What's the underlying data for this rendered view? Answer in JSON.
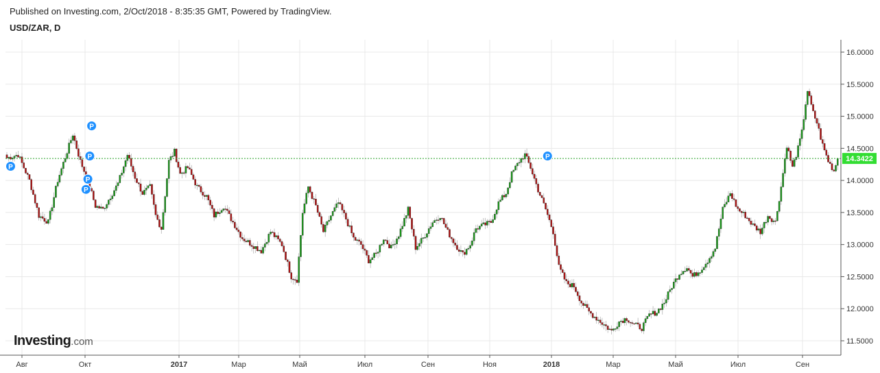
{
  "header": {
    "published": "Published on Investing.com, 2/Oct/2018 - 8:35:35 GMT, Powered by TradingView.",
    "symbol": "USD/ZAR, D"
  },
  "logo": {
    "main": "Investing",
    "suffix": ".com"
  },
  "colors": {
    "up": "#1a9b1a",
    "down": "#b31212",
    "price_label": "#33dd33",
    "marker": "#1e90ff",
    "grid": "#e8e8e8"
  },
  "chart_data": {
    "type": "candlestick",
    "title": "USD/ZAR, D",
    "ylim": [
      11.4,
      16.15
    ],
    "y_ticks": [
      "16.0000",
      "15.5000",
      "15.0000",
      "14.5000",
      "14.0000",
      "13.5000",
      "13.0000",
      "12.5000",
      "12.0000",
      "11.5000"
    ],
    "y_tick_values": [
      16.0,
      15.5,
      15.0,
      14.5,
      14.0,
      13.5,
      13.0,
      12.5,
      12.0,
      11.5
    ],
    "x_ticks": [
      "Авг",
      "Окт",
      "2017",
      "Мар",
      "Май",
      "Июл",
      "Сен",
      "Ноя",
      "2018",
      "Мар",
      "Май",
      "Июл",
      "Сен"
    ],
    "x_tick_bold": [
      false,
      false,
      true,
      false,
      false,
      false,
      false,
      false,
      true,
      false,
      false,
      false,
      false
    ],
    "last_price": 14.3422,
    "last_price_label": "14.3422",
    "marker_label": "P",
    "markers": [
      [
        2,
        14.22
      ],
      [
        45,
        14.85
      ],
      [
        44,
        14.38
      ],
      [
        43,
        14.02
      ],
      [
        42,
        13.86
      ],
      [
        287,
        14.38
      ]
    ],
    "path": [
      [
        0,
        14.35
      ],
      [
        6,
        14.4
      ],
      [
        12,
        14.0
      ],
      [
        17,
        13.45
      ],
      [
        22,
        13.35
      ],
      [
        27,
        14.0
      ],
      [
        32,
        14.45
      ],
      [
        35,
        14.72
      ],
      [
        39,
        14.3
      ],
      [
        43,
        14.0
      ],
      [
        47,
        13.6
      ],
      [
        51,
        13.55
      ],
      [
        55,
        13.75
      ],
      [
        59,
        13.95
      ],
      [
        64,
        14.4
      ],
      [
        68,
        14.05
      ],
      [
        72,
        13.8
      ],
      [
        76,
        13.9
      ],
      [
        79,
        13.45
      ],
      [
        82,
        13.25
      ],
      [
        86,
        14.3
      ],
      [
        89,
        14.45
      ],
      [
        92,
        14.1
      ],
      [
        96,
        14.2
      ],
      [
        101,
        13.9
      ],
      [
        106,
        13.75
      ],
      [
        110,
        13.45
      ],
      [
        115,
        13.6
      ],
      [
        120,
        13.35
      ],
      [
        125,
        13.1
      ],
      [
        130,
        13.0
      ],
      [
        135,
        12.9
      ],
      [
        140,
        13.2
      ],
      [
        146,
        13.0
      ],
      [
        151,
        12.5
      ],
      [
        154,
        12.45
      ],
      [
        157,
        13.5
      ],
      [
        160,
        13.9
      ],
      [
        164,
        13.6
      ],
      [
        168,
        13.2
      ],
      [
        172,
        13.45
      ],
      [
        176,
        13.65
      ],
      [
        180,
        13.4
      ],
      [
        184,
        13.1
      ],
      [
        188,
        13.0
      ],
      [
        192,
        12.75
      ],
      [
        196,
        12.85
      ],
      [
        200,
        13.1
      ],
      [
        204,
        12.95
      ],
      [
        208,
        13.15
      ],
      [
        213,
        13.55
      ],
      [
        217,
        12.95
      ],
      [
        221,
        13.1
      ],
      [
        226,
        13.35
      ],
      [
        230,
        13.45
      ],
      [
        234,
        13.2
      ],
      [
        238,
        13.0
      ],
      [
        242,
        12.85
      ],
      [
        246,
        13.0
      ],
      [
        249,
        13.25
      ],
      [
        253,
        13.3
      ],
      [
        257,
        13.35
      ],
      [
        261,
        13.65
      ],
      [
        265,
        13.8
      ],
      [
        268,
        14.1
      ],
      [
        272,
        14.3
      ],
      [
        275,
        14.4
      ],
      [
        278,
        14.2
      ],
      [
        282,
        13.85
      ],
      [
        286,
        13.55
      ],
      [
        290,
        13.2
      ],
      [
        293,
        12.65
      ],
      [
        297,
        12.4
      ],
      [
        301,
        12.35
      ],
      [
        305,
        12.1
      ],
      [
        309,
        11.95
      ],
      [
        313,
        11.85
      ],
      [
        317,
        11.75
      ],
      [
        321,
        11.65
      ],
      [
        325,
        11.8
      ],
      [
        329,
        11.85
      ],
      [
        333,
        11.75
      ],
      [
        337,
        11.7
      ],
      [
        341,
        11.9
      ],
      [
        345,
        11.95
      ],
      [
        349,
        12.1
      ],
      [
        353,
        12.35
      ],
      [
        357,
        12.55
      ],
      [
        361,
        12.65
      ],
      [
        364,
        12.5
      ],
      [
        368,
        12.6
      ],
      [
        372,
        12.75
      ],
      [
        376,
        12.95
      ],
      [
        380,
        13.55
      ],
      [
        384,
        13.8
      ],
      [
        388,
        13.55
      ],
      [
        392,
        13.45
      ],
      [
        396,
        13.3
      ],
      [
        400,
        13.2
      ],
      [
        404,
        13.45
      ],
      [
        408,
        13.35
      ],
      [
        411,
        13.9
      ],
      [
        414,
        14.55
      ],
      [
        417,
        14.2
      ],
      [
        420,
        14.5
      ],
      [
        422,
        14.75
      ],
      [
        424,
        15.2
      ],
      [
        425,
        15.4
      ],
      [
        428,
        15.05
      ],
      [
        430,
        14.9
      ],
      [
        433,
        14.55
      ],
      [
        436,
        14.3
      ],
      [
        439,
        14.15
      ],
      [
        441,
        14.34
      ]
    ]
  }
}
